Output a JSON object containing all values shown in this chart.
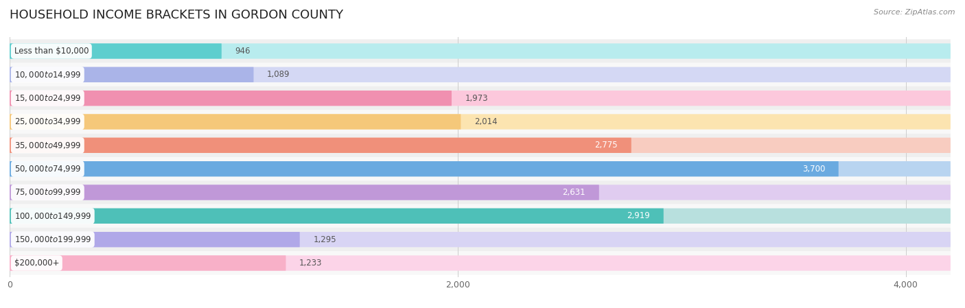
{
  "title": "HOUSEHOLD INCOME BRACKETS IN GORDON COUNTY",
  "source": "Source: ZipAtlas.com",
  "categories": [
    "Less than $10,000",
    "$10,000 to $14,999",
    "$15,000 to $24,999",
    "$25,000 to $34,999",
    "$35,000 to $49,999",
    "$50,000 to $74,999",
    "$75,000 to $99,999",
    "$100,000 to $149,999",
    "$150,000 to $199,999",
    "$200,000+"
  ],
  "values": [
    946,
    1089,
    1973,
    2014,
    2775,
    3700,
    2631,
    2919,
    1295,
    1233
  ],
  "bar_colors": [
    "#5ecece",
    "#aab4e8",
    "#f090b0",
    "#f5c87a",
    "#f0907a",
    "#6aaae0",
    "#c098d8",
    "#4ec0b8",
    "#b0a8e8",
    "#f8b0c8"
  ],
  "bar_bg_colors": [
    "#b8ecee",
    "#d4d8f4",
    "#fcc8dc",
    "#fce4b0",
    "#f8ccc0",
    "#b8d4f0",
    "#e0ccf0",
    "#b8e0de",
    "#d8d4f4",
    "#fcd4e8"
  ],
  "row_bg_colors": [
    "#efefef",
    "#f8f8f8"
  ],
  "xlim_max": 4200,
  "xticks": [
    0,
    2000,
    4000
  ],
  "xticklabels": [
    "0",
    "2,000",
    "4,000"
  ],
  "value_inside_threshold": 2500,
  "title_fontsize": 13,
  "label_fontsize": 8.5,
  "value_fontsize": 8.5
}
